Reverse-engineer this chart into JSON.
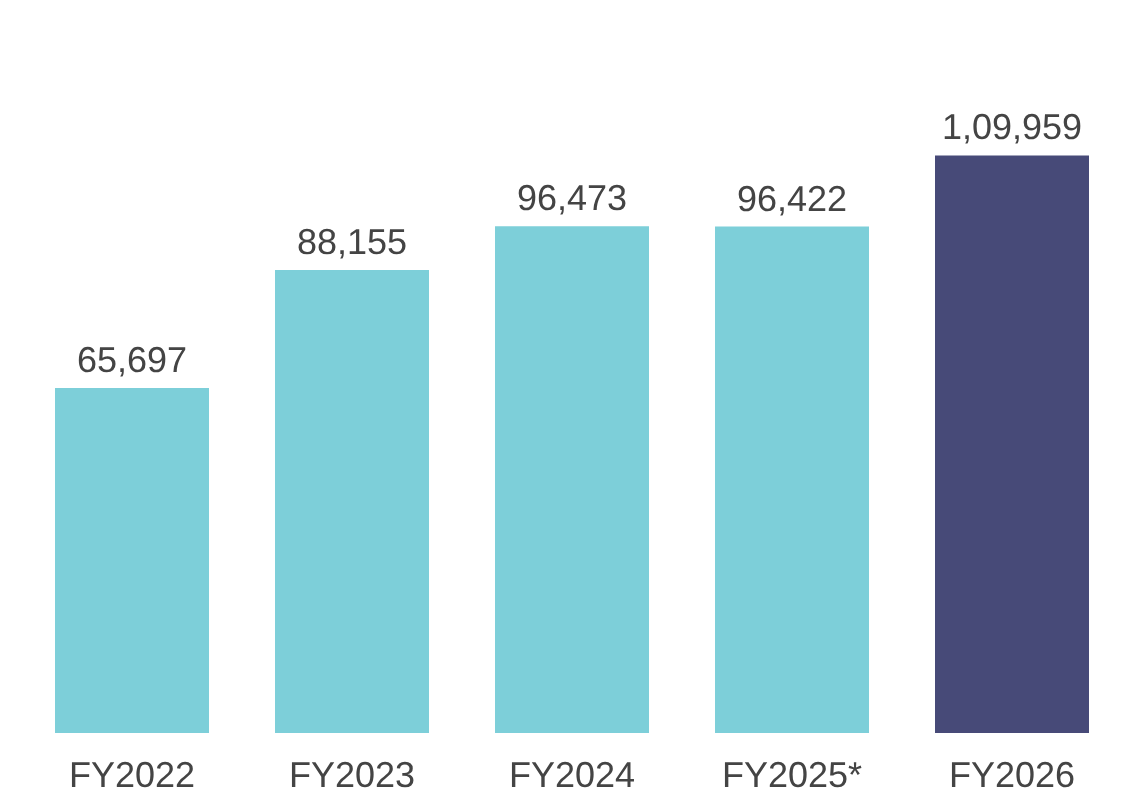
{
  "chart_data": {
    "type": "bar",
    "categories": [
      "FY2022",
      "FY2023",
      "FY2024",
      "FY2025*",
      "FY2026"
    ],
    "values": [
      65697,
      88155,
      96473,
      96422,
      109959
    ],
    "colors": [
      "#7dcfd9",
      "#7dcfd9",
      "#7dcfd9",
      "#7dcfd9",
      "#474a78"
    ],
    "value_labels": [
      "65,697",
      "88,155",
      "96,473",
      "96,422",
      "1,09,959"
    ],
    "grid": false
  }
}
